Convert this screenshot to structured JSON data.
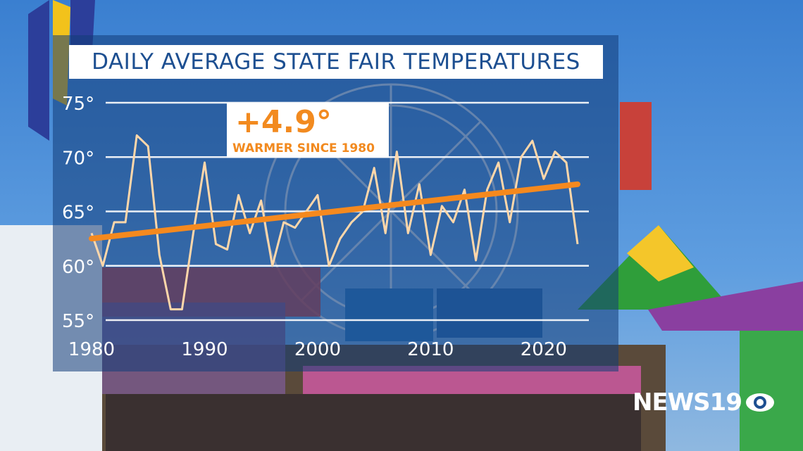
{
  "title": "DAILY AVERAGE STATE FAIR TEMPERATURES",
  "annotation": {
    "value": "+4.9°",
    "caption": "WARMER SINCE 1980"
  },
  "logo": {
    "text": "NEWS19"
  },
  "colors": {
    "title_text": "#1d4f91",
    "data_line": "#ffd7aa",
    "trend_line": "#f5891e",
    "annotation_text": "#f28a1f",
    "axis_text": "#ffffff"
  },
  "chart_data": {
    "type": "line",
    "title": "DAILY AVERAGE STATE FAIR TEMPERATURES",
    "xlabel": "",
    "ylabel": "",
    "xlim": [
      1980,
      2023
    ],
    "ylim": [
      55,
      75
    ],
    "x_ticks": [
      1980,
      1990,
      2000,
      2010,
      2020
    ],
    "x_tick_labels": [
      "1980",
      "1990",
      "2000",
      "2010",
      "2020"
    ],
    "y_ticks": [
      55,
      60,
      65,
      70,
      75
    ],
    "y_tick_labels": [
      "55°",
      "60°",
      "65°",
      "70°",
      "75°"
    ],
    "grid": "horizontal",
    "series": [
      {
        "kind": "data",
        "x": [
          1980,
          1981,
          1982,
          1983,
          1984,
          1985,
          1986,
          1987,
          1988,
          1989,
          1990,
          1991,
          1992,
          1993,
          1994,
          1995,
          1996,
          1997,
          1998,
          1999,
          2000,
          2001,
          2002,
          2003,
          2004,
          2005,
          2006,
          2007,
          2008,
          2009,
          2010,
          2011,
          2012,
          2013,
          2014,
          2015,
          2016,
          2017,
          2018,
          2019,
          2020,
          2021,
          2022,
          2023
        ],
        "y": [
          63,
          60,
          64,
          64,
          72,
          71,
          61,
          56,
          56,
          63,
          69.5,
          62,
          61.5,
          66.5,
          63,
          66,
          60,
          64,
          63.5,
          65,
          66.5,
          60,
          62.5,
          64,
          65,
          69,
          63,
          70.5,
          63,
          67.5,
          61,
          65.5,
          64,
          67,
          60.5,
          67,
          69.5,
          64,
          70,
          71.5,
          68,
          70.5,
          69.5,
          62
        ]
      },
      {
        "kind": "trend",
        "x": [
          1980,
          2023
        ],
        "y": [
          62.5,
          67.5
        ]
      }
    ]
  }
}
